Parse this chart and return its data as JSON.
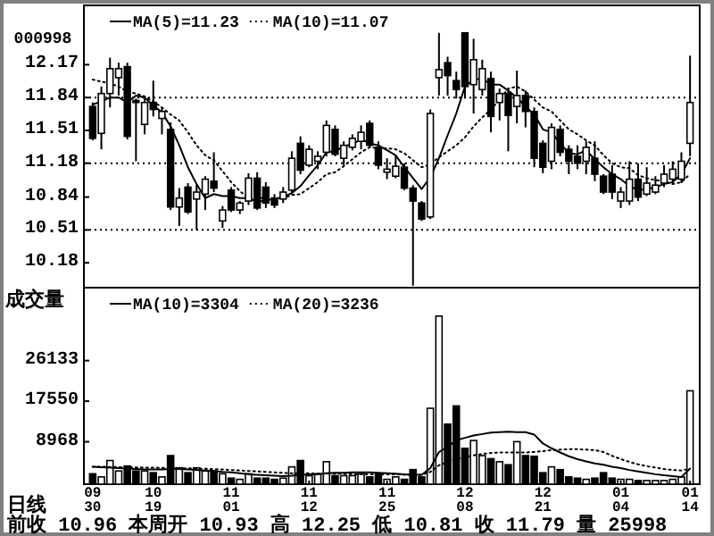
{
  "chart_data": [
    {
      "type": "candlestick",
      "title": "000998",
      "legend": "top left",
      "tick_labels": "y",
      "ylim": [
        9.93,
        12.73
      ],
      "yticks": [
        12.17,
        11.84,
        11.51,
        11.18,
        10.84,
        10.51,
        10.18
      ],
      "ref_lines": [
        {
          "axis": "y",
          "value": 11.84,
          "line_style": "dotted",
          "color": "#000000"
        },
        {
          "axis": "y",
          "value": 11.18,
          "line_style": "dotted",
          "color": "#000000"
        },
        {
          "axis": "y",
          "value": 10.51,
          "line_style": "dotted",
          "color": "#000000"
        }
      ],
      "categories": [
        null,
        null,
        null,
        null,
        null,
        null,
        null,
        null,
        null,
        null,
        null,
        null,
        null,
        null,
        null,
        null,
        null,
        null,
        null,
        null,
        null,
        null,
        null,
        null,
        null,
        null,
        null,
        null,
        null,
        null,
        null,
        null,
        null,
        null,
        null,
        null,
        null,
        null,
        null,
        null,
        null,
        null,
        null,
        null,
        null,
        null,
        null,
        null,
        null,
        null,
        null,
        null,
        null,
        null,
        null,
        null,
        null,
        null,
        null,
        null,
        null,
        null,
        null,
        null,
        null,
        null,
        null,
        null,
        null,
        null
      ],
      "ohlc": [
        [
          11.75,
          11.79,
          11.41,
          11.43
        ],
        [
          11.48,
          11.95,
          11.32,
          11.88
        ],
        [
          11.88,
          12.24,
          11.74,
          12.13
        ],
        [
          12.04,
          12.19,
          11.86,
          12.13
        ],
        [
          12.15,
          12.19,
          11.42,
          11.45
        ],
        [
          11.81,
          11.83,
          11.2,
          11.79
        ],
        [
          11.57,
          11.86,
          11.47,
          11.79
        ],
        [
          11.79,
          12.01,
          11.65,
          11.72
        ],
        [
          11.63,
          11.74,
          11.47,
          11.7
        ],
        [
          11.52,
          11.59,
          10.71,
          10.74
        ],
        [
          10.74,
          10.93,
          10.55,
          10.83
        ],
        [
          10.94,
          10.98,
          10.67,
          10.69
        ],
        [
          10.82,
          10.96,
          10.51,
          10.89
        ],
        [
          10.87,
          11.05,
          10.71,
          11.02
        ],
        [
          11.0,
          11.29,
          10.89,
          10.93
        ],
        [
          10.6,
          10.75,
          10.53,
          10.71
        ],
        [
          10.91,
          10.94,
          10.69,
          10.71
        ],
        [
          10.71,
          10.8,
          10.67,
          10.78
        ],
        [
          10.8,
          11.08,
          10.76,
          11.03
        ],
        [
          11.03,
          11.09,
          10.71,
          10.73
        ],
        [
          10.94,
          10.99,
          10.73,
          10.78
        ],
        [
          10.82,
          10.87,
          10.73,
          10.76
        ],
        [
          10.82,
          10.94,
          10.78,
          10.89
        ],
        [
          10.91,
          11.3,
          10.87,
          11.23
        ],
        [
          11.38,
          11.45,
          11.07,
          11.11
        ],
        [
          11.16,
          11.36,
          11.14,
          11.32
        ],
        [
          11.2,
          11.3,
          11.12,
          11.25
        ],
        [
          11.29,
          11.61,
          11.25,
          11.56
        ],
        [
          11.52,
          11.56,
          11.25,
          11.27
        ],
        [
          11.23,
          11.4,
          11.16,
          11.36
        ],
        [
          11.34,
          11.47,
          11.31,
          11.43
        ],
        [
          11.4,
          11.56,
          11.32,
          11.49
        ],
        [
          11.58,
          11.61,
          11.34,
          11.36
        ],
        [
          11.34,
          11.4,
          11.12,
          11.16
        ],
        [
          11.09,
          11.23,
          11.02,
          11.12
        ],
        [
          11.05,
          11.26,
          11.03,
          11.15
        ],
        [
          11.14,
          11.18,
          10.91,
          10.93
        ],
        [
          10.93,
          10.96,
          9.95,
          10.8
        ],
        [
          10.78,
          10.8,
          10.6,
          10.62
        ],
        [
          10.64,
          11.72,
          10.62,
          11.68
        ],
        [
          12.04,
          12.49,
          11.86,
          12.12
        ],
        [
          12.19,
          12.25,
          11.86,
          12.06
        ],
        [
          12.01,
          12.1,
          11.83,
          11.92
        ],
        [
          12.49,
          12.49,
          11.83,
          11.95
        ],
        [
          11.97,
          12.43,
          11.68,
          12.22
        ],
        [
          11.92,
          12.22,
          11.86,
          12.13
        ],
        [
          12.03,
          12.1,
          11.49,
          11.65
        ],
        [
          11.79,
          11.93,
          11.61,
          11.88
        ],
        [
          11.88,
          11.91,
          11.3,
          11.66
        ],
        [
          11.75,
          12.11,
          11.58,
          11.86
        ],
        [
          11.86,
          11.91,
          11.54,
          11.7
        ],
        [
          11.7,
          11.74,
          11.14,
          11.23
        ],
        [
          11.38,
          11.41,
          11.08,
          11.14
        ],
        [
          11.2,
          11.58,
          11.12,
          11.54
        ],
        [
          11.52,
          11.56,
          11.25,
          11.29
        ],
        [
          11.32,
          11.36,
          11.07,
          11.2
        ],
        [
          11.25,
          11.36,
          11.12,
          11.18
        ],
        [
          11.2,
          11.4,
          11.07,
          11.34
        ],
        [
          11.23,
          11.4,
          11.0,
          11.07
        ],
        [
          11.05,
          11.07,
          10.87,
          10.89
        ],
        [
          11.07,
          11.16,
          10.82,
          10.89
        ],
        [
          10.8,
          10.94,
          10.73,
          10.89
        ],
        [
          10.8,
          11.2,
          10.76,
          11.02
        ],
        [
          11.02,
          11.18,
          10.8,
          10.84
        ],
        [
          10.87,
          11.14,
          10.85,
          10.98
        ],
        [
          10.89,
          11.05,
          10.87,
          10.96
        ],
        [
          10.98,
          11.16,
          10.94,
          11.07
        ],
        [
          11.02,
          11.2,
          10.98,
          11.12
        ],
        [
          11.02,
          11.29,
          10.98,
          11.2
        ],
        [
          11.38,
          12.26,
          11.25,
          11.79
        ]
      ],
      "series": [
        {
          "type": "line",
          "name": "MA(5)=11.23",
          "color": "#000000",
          "line_style": "solid",
          "values": [
            11.77,
            11.8,
            11.84,
            11.84,
            11.79,
            11.86,
            11.84,
            11.76,
            11.69,
            11.55,
            11.36,
            11.14,
            10.97,
            10.83,
            10.87,
            10.85,
            10.85,
            10.83,
            10.83,
            10.79,
            10.81,
            10.82,
            10.84,
            10.88,
            10.95,
            11.06,
            11.16,
            11.29,
            11.3,
            11.35,
            11.37,
            11.42,
            11.38,
            11.36,
            11.31,
            11.26,
            11.14,
            11.03,
            10.92,
            11.04,
            11.23,
            11.46,
            11.68,
            11.95,
            12.02,
            12.03,
            11.97,
            11.97,
            11.91,
            11.84,
            11.75,
            11.67,
            11.52,
            11.49,
            11.38,
            11.28,
            11.27,
            11.31,
            11.22,
            11.14,
            11.07,
            11.02,
            10.95,
            10.91,
            10.92,
            10.94,
            10.97,
            10.99,
            11.07,
            11.23
          ]
        },
        {
          "type": "line",
          "name": "MA(10)=11.07",
          "color": "#000000",
          "line_style": "dotted",
          "values": [
            12.02,
            12.0,
            11.98,
            11.95,
            11.9,
            11.88,
            11.85,
            11.8,
            11.74,
            11.67,
            11.61,
            11.49,
            11.36,
            11.26,
            11.21,
            11.1,
            10.99,
            10.9,
            10.83,
            10.83,
            10.83,
            10.83,
            10.83,
            10.86,
            10.87,
            10.93,
            10.99,
            11.07,
            11.09,
            11.15,
            11.22,
            11.29,
            11.34,
            11.33,
            11.33,
            11.32,
            11.28,
            11.21,
            11.14,
            11.17,
            11.24,
            11.3,
            11.36,
            11.44,
            11.55,
            11.64,
            11.72,
            11.82,
            11.93,
            11.95,
            11.9,
            11.82,
            11.74,
            11.7,
            11.61,
            11.52,
            11.47,
            11.41,
            11.36,
            11.26,
            11.18,
            11.14,
            11.13,
            11.06,
            11.03,
            11.01,
            11.0,
            10.97,
            10.99,
            11.07
          ]
        }
      ]
    },
    {
      "type": "bar",
      "ylabel": "成交量",
      "legend": "top left",
      "ylim": [
        0,
        40800
      ],
      "yticks": [
        26133,
        17550,
        8968
      ],
      "annotations": [
        "日线",
        "前收 10.96 本周开 10.93 高 12.25 低 10.81 收 11.79 量 25998"
      ],
      "categories": [
        "09\n30",
        null,
        null,
        null,
        null,
        null,
        null,
        "10\n19",
        null,
        null,
        null,
        null,
        null,
        null,
        null,
        null,
        "11\n01",
        null,
        null,
        null,
        null,
        null,
        null,
        null,
        null,
        "11\n12",
        null,
        null,
        null,
        null,
        null,
        null,
        null,
        null,
        "11\n25",
        null,
        null,
        null,
        null,
        null,
        null,
        null,
        null,
        "12\n08",
        null,
        null,
        null,
        null,
        null,
        null,
        null,
        null,
        "12\n21",
        null,
        null,
        null,
        null,
        null,
        null,
        null,
        null,
        "01\n04",
        null,
        null,
        null,
        null,
        null,
        null,
        null,
        "01\n14"
      ],
      "series": [
        {
          "type": "bar",
          "values": [
            2200,
            1540,
            5000,
            2800,
            3850,
            2800,
            2800,
            2430,
            1540,
            6040,
            3460,
            2430,
            3460,
            2800,
            2800,
            2200,
            1280,
            1020,
            2200,
            1280,
            1280,
            1020,
            1280,
            3660,
            5000,
            1800,
            2200,
            4750,
            1800,
            1800,
            1800,
            2200,
            1540,
            2200,
            1030,
            1540,
            1030,
            3080,
            1540,
            16050,
            35540,
            12700,
            16550,
            7580,
            9240,
            6040,
            5390,
            4750,
            4110,
            8990,
            6040,
            5900,
            2430,
            3660,
            3080,
            1540,
            1280,
            1030,
            1280,
            2430,
            1280,
            1030,
            1030,
            770,
            770,
            770,
            770,
            1030,
            1540,
            19750
          ],
          "colors": [
            "#000000",
            "#ffffff",
            "#ffffff",
            "#ffffff",
            "#000000",
            "#000000",
            "#ffffff",
            "#000000",
            "#ffffff",
            "#000000",
            "#ffffff",
            "#000000",
            "#ffffff",
            "#ffffff",
            "#000000",
            "#ffffff",
            "#000000",
            "#ffffff",
            "#ffffff",
            "#000000",
            "#000000",
            "#000000",
            "#ffffff",
            "#ffffff",
            "#000000",
            "#ffffff",
            "#ffffff",
            "#ffffff",
            "#000000",
            "#ffffff",
            "#ffffff",
            "#ffffff",
            "#000000",
            "#000000",
            "#ffffff",
            "#ffffff",
            "#000000",
            "#000000",
            "#000000",
            "#ffffff",
            "#ffffff",
            "#000000",
            "#000000",
            "#000000",
            "#ffffff",
            "#ffffff",
            "#000000",
            "#ffffff",
            "#000000",
            "#ffffff",
            "#000000",
            "#000000",
            "#000000",
            "#ffffff",
            "#000000",
            "#000000",
            "#000000",
            "#ffffff",
            "#000000",
            "#000000",
            "#000000",
            "#ffffff",
            "#ffffff",
            "#000000",
            "#ffffff",
            "#ffffff",
            "#ffffff",
            "#ffffff",
            "#ffffff",
            "#ffffff"
          ]
        },
        {
          "type": "line",
          "name": "MA(10)=3304",
          "color": "#000000",
          "line_style": "solid",
          "values": [
            3700,
            3600,
            3500,
            3400,
            3300,
            3200,
            3100,
            3100,
            3100,
            3200,
            3200,
            3100,
            3000,
            2900,
            2800,
            2600,
            2500,
            2300,
            2100,
            2000,
            1900,
            1800,
            1700,
            1800,
            2000,
            2100,
            2100,
            2300,
            2400,
            2400,
            2500,
            2500,
            2500,
            2400,
            2300,
            2200,
            2100,
            2000,
            2000,
            3400,
            6800,
            7900,
            9300,
            9800,
            10300,
            10600,
            10900,
            11000,
            11100,
            11000,
            11000,
            10500,
            8600,
            7600,
            6700,
            5900,
            5300,
            4800,
            4400,
            4100,
            3700,
            3400,
            3000,
            2700,
            2400,
            2100,
            1900,
            1700,
            1500,
            3304
          ]
        },
        {
          "type": "line",
          "name": "MA(20)=3236",
          "color": "#000000",
          "line_style": "dotted",
          "values": [
            3700,
            3700,
            3650,
            3600,
            3600,
            3550,
            3500,
            3500,
            3450,
            3400,
            3400,
            3350,
            3300,
            3250,
            3200,
            3100,
            3000,
            2900,
            2800,
            2700,
            2600,
            2500,
            2400,
            2300,
            2300,
            2300,
            2200,
            2200,
            2200,
            2200,
            2100,
            2100,
            2100,
            2100,
            2100,
            2100,
            2000,
            2000,
            2000,
            2600,
            4000,
            4700,
            5300,
            5700,
            6100,
            6400,
            6600,
            6700,
            6700,
            6700,
            6700,
            6800,
            7000,
            7200,
            7300,
            7400,
            7400,
            7300,
            7200,
            6800,
            6000,
            5300,
            4700,
            4200,
            3800,
            3500,
            3200,
            3000,
            2900,
            3236
          ]
        }
      ]
    }
  ]
}
